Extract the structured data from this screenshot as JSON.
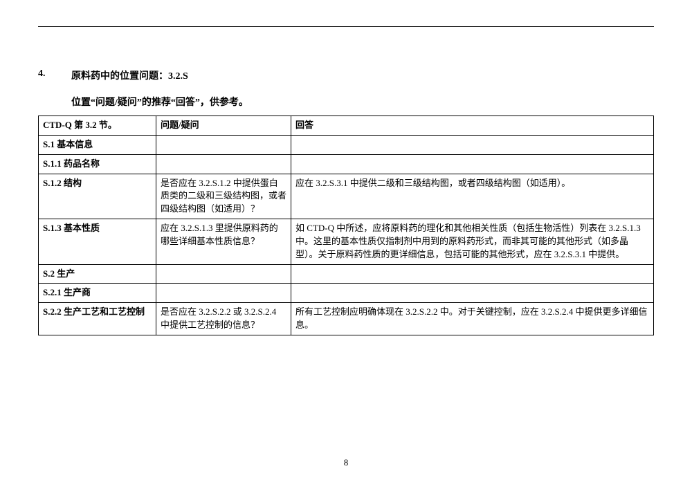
{
  "heading": {
    "number": "4.",
    "title": "原料药中的位置问题：3.2.S"
  },
  "subheading": "位置“问题/疑问”的推荐“回答”，供参考。",
  "table": {
    "columns": {
      "c0": "CTD-Q 第 3.2 节。",
      "c1": "问题/疑问",
      "c2": "回答"
    },
    "rows": {
      "r0": {
        "section": "S.1  基本信息",
        "question": "",
        "answer": ""
      },
      "r1": {
        "section": "S.1.1  药品名称",
        "question": "",
        "answer": ""
      },
      "r2": {
        "section": "S.1.2  结构",
        "question": "是否应在 3.2.S.1.2 中提供蛋白质类的二级和三级结构图，或者四级结构图（如适用）？",
        "answer": "应在 3.2.S.3.1 中提供二级和三级结构图，或者四级结构图（如适用）。"
      },
      "r3": {
        "section": "S.1.3  基本性质",
        "question": "应在 3.2.S.1.3 里提供原料药的哪些详细基本性质信息？",
        "answer": "如 CTD-Q 中所述，应将原料药的理化和其他相关性质（包括生物活性）列表在 3.2.S.1.3 中。这里的基本性质仅指制剂中用到的原料药形式，而非其可能的其他形式（如多晶型）。关于原料药性质的更详细信息，包括可能的其他形式，应在 3.2.S.3.1 中提供。"
      },
      "r4": {
        "section": "S.2  生产",
        "question": "",
        "answer": ""
      },
      "r5": {
        "section": "S.2.1  生产商",
        "question": "",
        "answer": ""
      },
      "r6": {
        "section": "S.2.2  生产工艺和工艺控制",
        "question": "是否应在 3.2.S.2.2 或 3.2.S.2.4 中提供工艺控制的信息？",
        "answer": "所有工艺控制应明确体现在 3.2.S.2.2 中。对于关键控制，应在 3.2.S.2.4 中提供更多详细信息。"
      }
    }
  },
  "pageNumber": "8"
}
